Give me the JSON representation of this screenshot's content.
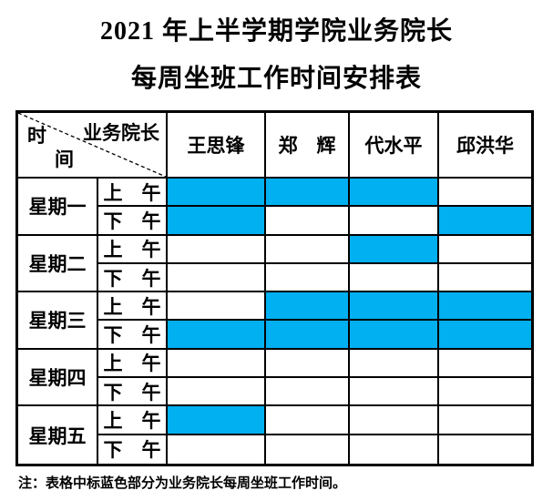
{
  "page": {
    "title_line1": "2021 年上半学期学院业务院长",
    "title_line2": "每周坐班工作时间安排表",
    "note": "注：表格中标蓝色部分为业务院长每周坐班工作时间。"
  },
  "table": {
    "corner": {
      "right_label": "业务院长",
      "left_label_top": "时",
      "left_label_bottom": "间"
    },
    "deans": [
      "王思锋",
      "郑　辉",
      "代水平",
      "邱洪华"
    ],
    "days": [
      {
        "label": "星期一",
        "sessions": [
          {
            "label": "上　午",
            "duty": [
              true,
              true,
              true,
              false
            ]
          },
          {
            "label": "下　午",
            "duty": [
              true,
              false,
              false,
              true
            ]
          }
        ]
      },
      {
        "label": "星期二",
        "sessions": [
          {
            "label": "上　午",
            "duty": [
              false,
              false,
              true,
              false
            ]
          },
          {
            "label": "下　午",
            "duty": [
              false,
              false,
              false,
              false
            ]
          }
        ]
      },
      {
        "label": "星期三",
        "sessions": [
          {
            "label": "上　午",
            "duty": [
              false,
              true,
              true,
              true
            ]
          },
          {
            "label": "下　午",
            "duty": [
              true,
              true,
              true,
              true
            ]
          }
        ]
      },
      {
        "label": "星期四",
        "sessions": [
          {
            "label": "上　午",
            "duty": [
              false,
              false,
              false,
              false
            ]
          },
          {
            "label": "下　午",
            "duty": [
              false,
              false,
              false,
              false
            ]
          }
        ]
      },
      {
        "label": "星期五",
        "sessions": [
          {
            "label": "上　午",
            "duty": [
              true,
              false,
              false,
              false
            ]
          },
          {
            "label": "下　午",
            "duty": [
              false,
              false,
              false,
              false
            ]
          }
        ]
      }
    ],
    "fill_color": "#00B0F0",
    "border_color": "#000000"
  }
}
